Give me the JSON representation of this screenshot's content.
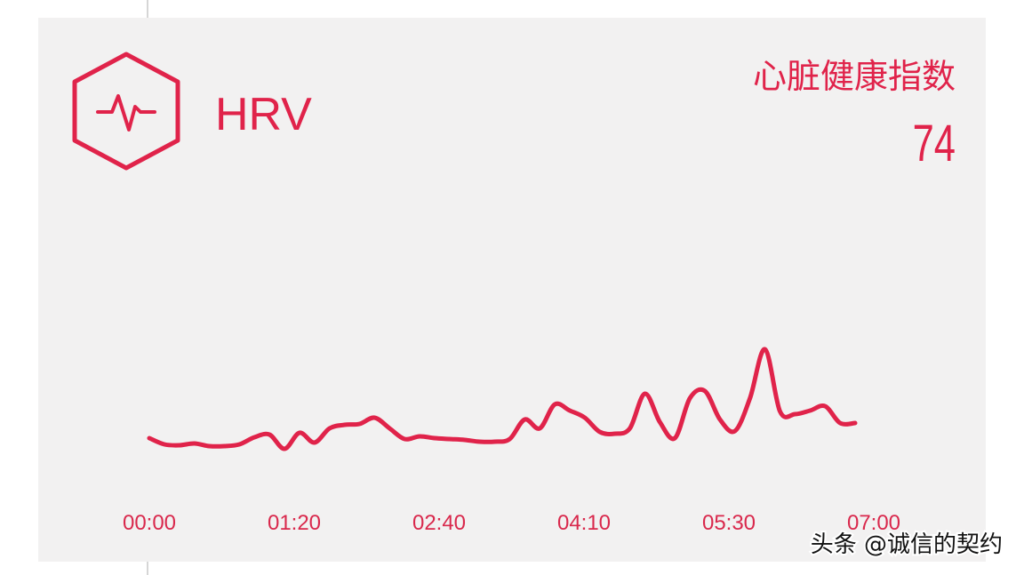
{
  "header": {
    "title": "HRV",
    "index_label": "心脏健康指数",
    "index_value": 74
  },
  "chart_data": {
    "type": "line",
    "color": "#e0234a",
    "x_labels": [
      "00:00",
      "01:20",
      "02:40",
      "04:10",
      "05:30",
      "07:00"
    ],
    "values": [
      26,
      22.5,
      22,
      23,
      21.5,
      21.5,
      22.5,
      26.5,
      28,
      20,
      29,
      23.5,
      31.5,
      33.5,
      34,
      37.5,
      31.5,
      25.5,
      27,
      26,
      25.5,
      25,
      24,
      24,
      25.5,
      36.5,
      31.5,
      45,
      41.5,
      37.5,
      29.5,
      28.5,
      31.5,
      51,
      35,
      26,
      48.5,
      52.5,
      36.5,
      30,
      48.5,
      76,
      41,
      39.5,
      41.5,
      44,
      34.5,
      34.5
    ]
  },
  "watermark": "头条 @诚信的契约"
}
